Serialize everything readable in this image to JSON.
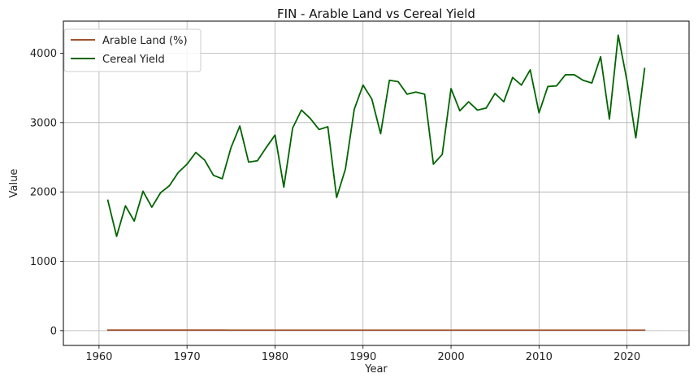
{
  "chart_data": {
    "type": "line",
    "title": "FIN - Arable Land vs Cereal Yield",
    "xlabel": "Year",
    "ylabel": "Value",
    "xlim": [
      1955.95,
      2027.05
    ],
    "ylim": [
      -212.5,
      4462.5
    ],
    "xticks": [
      1960,
      1970,
      1980,
      1990,
      2000,
      2010,
      2020
    ],
    "yticks": [
      0,
      1000,
      2000,
      3000,
      4000
    ],
    "grid": true,
    "legend_position": "top-left",
    "x": [
      1961,
      1962,
      1963,
      1964,
      1965,
      1966,
      1967,
      1968,
      1969,
      1970,
      1971,
      1972,
      1973,
      1974,
      1975,
      1976,
      1977,
      1978,
      1979,
      1980,
      1981,
      1982,
      1983,
      1984,
      1985,
      1986,
      1987,
      1988,
      1989,
      1990,
      1991,
      1992,
      1993,
      1994,
      1995,
      1996,
      1997,
      1998,
      1999,
      2000,
      2001,
      2002,
      2003,
      2004,
      2005,
      2006,
      2007,
      2008,
      2009,
      2010,
      2011,
      2012,
      2013,
      2014,
      2015,
      2016,
      2017,
      2018,
      2019,
      2020,
      2021,
      2022
    ],
    "series": [
      {
        "name": "Arable Land (%)",
        "color": "#a0522d",
        "values": [
          8.0,
          8.0,
          8.0,
          8.0,
          8.0,
          7.9,
          7.9,
          7.9,
          7.8,
          7.8,
          7.7,
          7.7,
          7.6,
          7.6,
          7.5,
          7.5,
          7.5,
          7.4,
          7.4,
          7.4,
          7.3,
          7.3,
          7.3,
          7.3,
          7.3,
          7.3,
          7.3,
          7.3,
          7.3,
          7.4,
          7.4,
          7.4,
          7.4,
          7.4,
          7.4,
          7.4,
          7.4,
          7.4,
          7.4,
          7.3,
          7.3,
          7.3,
          7.3,
          7.3,
          7.3,
          7.3,
          7.4,
          7.4,
          7.4,
          7.4,
          7.4,
          7.4,
          7.4,
          7.4,
          7.4,
          7.4,
          7.4,
          7.4,
          7.4,
          7.4,
          7.4,
          7.4
        ]
      },
      {
        "name": "Cereal Yield",
        "color": "#006400",
        "values": [
          1880,
          1360,
          1800,
          1580,
          2010,
          1780,
          1990,
          2090,
          2280,
          2400,
          2570,
          2460,
          2240,
          2190,
          2640,
          2950,
          2430,
          2450,
          2640,
          2820,
          2070,
          2920,
          3180,
          3060,
          2900,
          2940,
          1920,
          2330,
          3190,
          3540,
          3340,
          2840,
          3610,
          3590,
          3410,
          3440,
          3410,
          2400,
          2540,
          3490,
          3170,
          3300,
          3180,
          3210,
          3420,
          3300,
          3650,
          3540,
          3760,
          3140,
          3520,
          3530,
          3690,
          3690,
          3610,
          3570,
          3950,
          3050,
          4260,
          3600,
          2780,
          3780
        ]
      }
    ]
  }
}
